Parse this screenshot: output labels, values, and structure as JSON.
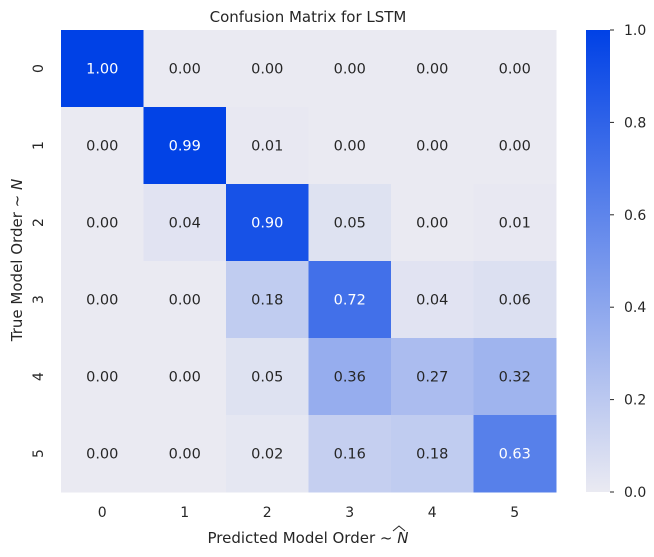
{
  "chart_data": {
    "type": "heatmap",
    "title": "Confusion Matrix for LSTM",
    "xlabel": "Predicted Model Order ~ ",
    "xlabel_symbol": "N",
    "xlabel_symbol_accent": "hat",
    "ylabel": "True Model Order ~ ",
    "ylabel_symbol": "N",
    "x_categories": [
      "0",
      "1",
      "2",
      "3",
      "4",
      "5"
    ],
    "y_categories": [
      "0",
      "1",
      "2",
      "3",
      "4",
      "5"
    ],
    "values": [
      [
        1.0,
        0.0,
        0.0,
        0.0,
        0.0,
        0.0
      ],
      [
        0.0,
        0.99,
        0.01,
        0.0,
        0.0,
        0.0
      ],
      [
        0.0,
        0.04,
        0.9,
        0.05,
        0.0,
        0.01
      ],
      [
        0.0,
        0.0,
        0.18,
        0.72,
        0.04,
        0.06
      ],
      [
        0.0,
        0.0,
        0.05,
        0.36,
        0.27,
        0.32
      ],
      [
        0.0,
        0.0,
        0.02,
        0.16,
        0.18,
        0.63
      ]
    ],
    "annotations": [
      [
        "1.00",
        "0.00",
        "0.00",
        "0.00",
        "0.00",
        "0.00"
      ],
      [
        "0.00",
        "0.99",
        "0.01",
        "0.00",
        "0.00",
        "0.00"
      ],
      [
        "0.00",
        "0.04",
        "0.90",
        "0.05",
        "0.00",
        "0.01"
      ],
      [
        "0.00",
        "0.00",
        "0.18",
        "0.72",
        "0.04",
        "0.06"
      ],
      [
        "0.00",
        "0.00",
        "0.05",
        "0.36",
        "0.27",
        "0.32"
      ],
      [
        "0.00",
        "0.00",
        "0.02",
        "0.16",
        "0.18",
        "0.63"
      ]
    ],
    "vmin": 0.0,
    "vmax": 1.0,
    "colorbar_ticks": [
      "0.0",
      "0.2",
      "0.4",
      "0.6",
      "0.8",
      "1.0"
    ],
    "colormap": {
      "low": "#eaeaf2",
      "high": "#0041e6"
    },
    "annotation_colors": {
      "on_light": "#262626",
      "on_dark": "#ffffff"
    },
    "grid": false,
    "legend": "colorbar-right"
  }
}
